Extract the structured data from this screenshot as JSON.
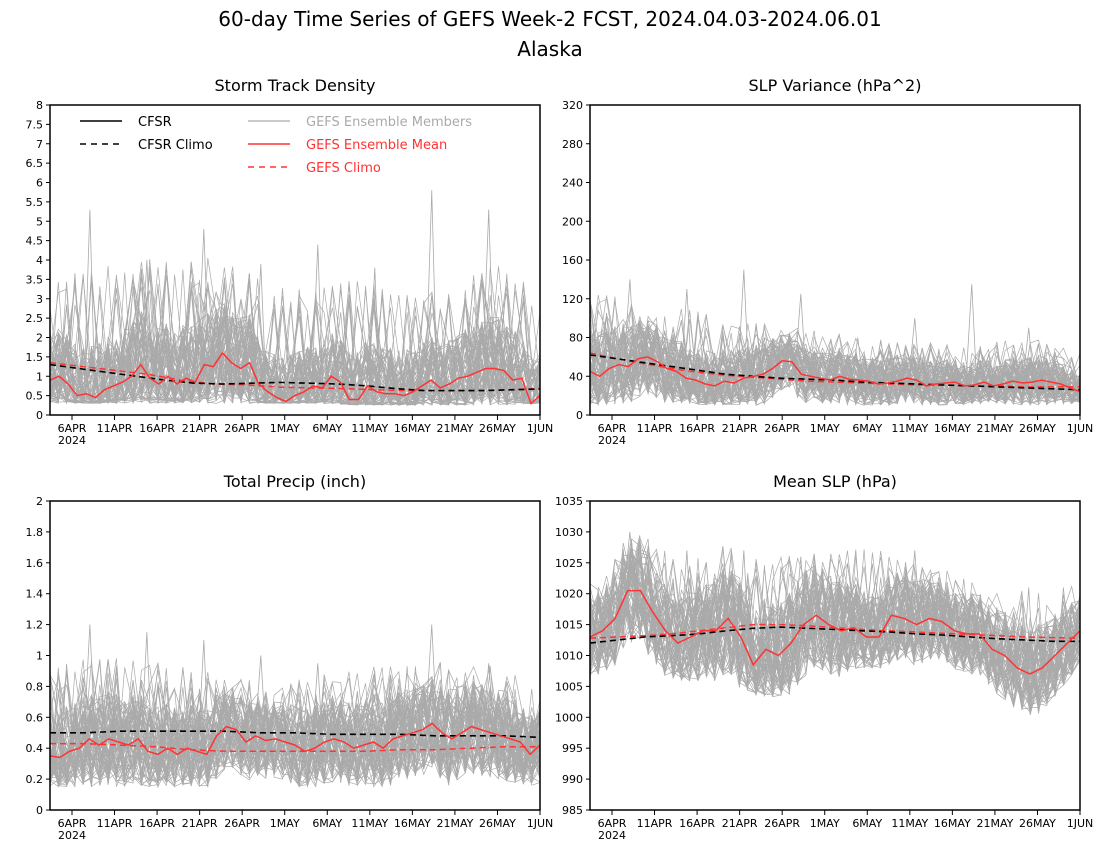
{
  "title": "60-day Time Series of GEFS Week-2 FCST, 2024.04.03-2024.06.01",
  "subtitle": "Alaska",
  "legend": {
    "items": [
      {
        "label": "CFSR",
        "color": "#000000",
        "dash": false
      },
      {
        "label": "CFSR Climo",
        "color": "#000000",
        "dash": true
      },
      {
        "label": "GEFS Ensemble Members",
        "color": "#aaaaaa",
        "dash": false
      },
      {
        "label": "GEFS Ensemble Mean",
        "color": "#ff3333",
        "dash": false
      },
      {
        "label": "GEFS Climo",
        "color": "#ff3333",
        "dash": true
      }
    ]
  },
  "x_ticks": [
    "6APR",
    "11APR",
    "16APR",
    "21APR",
    "26APR",
    "1MAY",
    "6MAY",
    "11MAY",
    "16MAY",
    "21MAY",
    "26MAY",
    "1JUN"
  ],
  "x_year": "2024",
  "colors": {
    "members": "#aaaaaa",
    "mean": "#ff3333",
    "cfsr": "#000000"
  },
  "chart_data": [
    {
      "type": "line",
      "title": "Storm Track Density",
      "ylim": [
        0,
        8
      ],
      "yticks": [
        "0",
        "0.5",
        "1",
        "1.5",
        "2",
        "2.5",
        "3",
        "3.5",
        "4",
        "4.5",
        "5",
        "5.5",
        "6",
        "6.5",
        "7",
        "7.5",
        "8"
      ],
      "ytick_values": [
        0,
        0.5,
        1,
        1.5,
        2,
        2.5,
        3,
        3.5,
        4,
        4.5,
        5,
        5.5,
        6,
        6.5,
        7,
        7.5,
        8
      ],
      "series": [
        {
          "name": "GEFS Ensemble Mean",
          "values": [
            0.9,
            1.0,
            0.8,
            0.5,
            0.55,
            0.45,
            0.65,
            0.75,
            0.85,
            1.0,
            1.3,
            0.95,
            0.8,
            1.0,
            0.8,
            0.95,
            0.85,
            1.3,
            1.25,
            1.6,
            1.35,
            1.2,
            1.35,
            0.8,
            0.6,
            0.45,
            0.35,
            0.5,
            0.6,
            0.75,
            0.7,
            1.0,
            0.85,
            0.4,
            0.4,
            0.75,
            0.6,
            0.55,
            0.55,
            0.5,
            0.6,
            0.75,
            0.9,
            0.7,
            0.8,
            0.95,
            1.0,
            1.1,
            1.2,
            1.2,
            1.15,
            0.9,
            0.95,
            0.3,
            0.5
          ]
        },
        {
          "name": "CFSR Climo",
          "values": [
            1.3,
            1.2,
            1.1,
            1.0,
            0.9,
            0.82,
            0.8,
            0.82,
            0.84,
            0.82,
            0.8,
            0.75,
            0.68,
            0.63,
            0.63,
            0.63,
            0.65,
            0.67
          ]
        },
        {
          "name": "GEFS Climo",
          "values": [
            1.35,
            1.25,
            1.15,
            1.05,
            0.9,
            0.8,
            0.78,
            0.72,
            0.7,
            0.68,
            0.65,
            0.63,
            0.63,
            0.63,
            0.65,
            0.68
          ]
        }
      ],
      "member_envelope": {
        "base": [
          0.3,
          0.3,
          0.3,
          0.3,
          0.3,
          0.3,
          0.3,
          0.25,
          0.25,
          0.25,
          0.25,
          0.3
        ],
        "top": [
          3.0,
          3.2,
          3.4,
          3.5,
          3.4,
          2.8,
          2.8,
          3.0,
          2.8,
          2.8,
          3.3,
          2.8
        ],
        "spikes": [
          5.3,
          4.0,
          4.8,
          3.9,
          4.4,
          3.8,
          5.8,
          5.3
        ]
      }
    },
    {
      "type": "line",
      "title": "SLP Variance (hPa^2)",
      "ylim": [
        0,
        320
      ],
      "yticks": [
        "0",
        "40",
        "80",
        "120",
        "160",
        "200",
        "240",
        "280",
        "320"
      ],
      "ytick_values": [
        0,
        40,
        80,
        120,
        160,
        200,
        240,
        280,
        320
      ],
      "series": [
        {
          "name": "GEFS Ensemble Mean",
          "values": [
            45,
            40,
            48,
            52,
            50,
            58,
            60,
            55,
            48,
            45,
            38,
            36,
            32,
            30,
            35,
            33,
            38,
            40,
            42,
            48,
            56,
            55,
            42,
            40,
            38,
            36,
            40,
            37,
            36,
            35,
            32,
            33,
            35,
            38,
            36,
            30,
            32,
            33,
            34,
            30,
            31,
            34,
            30,
            32,
            35,
            33,
            34,
            36,
            34,
            32,
            28,
            24
          ]
        },
        {
          "name": "CFSR Climo",
          "values": [
            62,
            58,
            54,
            50,
            46,
            42,
            40,
            38,
            37,
            36,
            34,
            33,
            32,
            31,
            30,
            29,
            28,
            27,
            26
          ]
        },
        {
          "name": "GEFS Climo",
          "values": [
            64,
            58,
            53,
            48,
            44,
            41,
            39,
            37,
            35,
            34,
            33,
            32,
            31,
            31,
            30,
            30,
            29,
            29,
            29
          ]
        }
      ],
      "member_envelope": {
        "base": [
          10,
          12,
          12,
          10,
          10,
          12,
          10,
          10,
          10,
          12,
          10,
          12
        ],
        "top": [
          110,
          100,
          95,
          85,
          80,
          75,
          70,
          65,
          65,
          65,
          70,
          55
        ],
        "spikes": [
          140,
          130,
          150,
          125,
          80,
          100,
          135,
          90
        ]
      }
    },
    {
      "type": "line",
      "title": "Total Precip (inch)",
      "ylim": [
        0,
        2
      ],
      "yticks": [
        "0",
        "0.2",
        "0.4",
        "0.6",
        "0.8",
        "1",
        "1.2",
        "1.4",
        "1.6",
        "1.8",
        "2"
      ],
      "ytick_values": [
        0,
        0.2,
        0.4,
        0.6,
        0.8,
        1,
        1.2,
        1.4,
        1.6,
        1.8,
        2
      ],
      "series": [
        {
          "name": "GEFS Ensemble Mean",
          "values": [
            0.35,
            0.34,
            0.38,
            0.4,
            0.46,
            0.42,
            0.46,
            0.44,
            0.42,
            0.46,
            0.38,
            0.36,
            0.4,
            0.36,
            0.4,
            0.38,
            0.36,
            0.48,
            0.54,
            0.52,
            0.44,
            0.48,
            0.45,
            0.46,
            0.44,
            0.42,
            0.38,
            0.4,
            0.44,
            0.46,
            0.44,
            0.4,
            0.42,
            0.44,
            0.4,
            0.46,
            0.48,
            0.5,
            0.52,
            0.56,
            0.5,
            0.46,
            0.5,
            0.54,
            0.52,
            0.5,
            0.48,
            0.46,
            0.44,
            0.36,
            0.42
          ]
        },
        {
          "name": "CFSR Climo",
          "values": [
            0.5,
            0.5,
            0.51,
            0.51,
            0.51,
            0.51,
            0.5,
            0.5,
            0.49,
            0.49,
            0.49,
            0.48,
            0.48,
            0.48,
            0.47
          ]
        },
        {
          "name": "GEFS Climo",
          "values": [
            0.43,
            0.43,
            0.42,
            0.41,
            0.39,
            0.38,
            0.38,
            0.38,
            0.38,
            0.38,
            0.39,
            0.39,
            0.4,
            0.41,
            0.41
          ]
        }
      ],
      "member_envelope": {
        "base": [
          0.15,
          0.15,
          0.15,
          0.15,
          0.15,
          0.15,
          0.15,
          0.15,
          0.15,
          0.15,
          0.15,
          0.15
        ],
        "top": [
          0.8,
          0.85,
          0.85,
          0.8,
          0.75,
          0.7,
          0.75,
          0.8,
          0.8,
          0.85,
          0.8,
          0.7
        ],
        "spikes": [
          1.2,
          1.15,
          1.1,
          1.0,
          0.95,
          0.9,
          1.2,
          0.95
        ]
      }
    },
    {
      "type": "line",
      "title": "Mean SLP (hPa)",
      "ylim": [
        985,
        1035
      ],
      "yticks": [
        "985",
        "990",
        "995",
        "1000",
        "1005",
        "1010",
        "1015",
        "1020",
        "1025",
        "1030",
        "1035"
      ],
      "ytick_values": [
        985,
        990,
        995,
        1000,
        1005,
        1010,
        1015,
        1020,
        1025,
        1030,
        1035
      ],
      "series": [
        {
          "name": "GEFS Ensemble Mean",
          "values": [
            1013,
            1014,
            1016,
            1020.5,
            1020.5,
            1017,
            1014,
            1012,
            1013,
            1014,
            1014,
            1016,
            1013,
            1008.5,
            1011,
            1010,
            1012,
            1015,
            1016.5,
            1015,
            1014,
            1014.5,
            1013,
            1013,
            1016.5,
            1016,
            1015,
            1016,
            1015.5,
            1014,
            1013.5,
            1013.5,
            1011,
            1010,
            1008,
            1007,
            1008,
            1010,
            1012,
            1014
          ]
        },
        {
          "name": "CFSR Climo",
          "values": [
            1012,
            1012.5,
            1013,
            1013.2,
            1013.5,
            1014,
            1014.4,
            1014.6,
            1014.4,
            1014.2,
            1014,
            1013.8,
            1013.5,
            1013.3,
            1013,
            1012.7,
            1012.5,
            1012.3,
            1012.3
          ]
        },
        {
          "name": "GEFS Climo",
          "values": [
            1012.8,
            1013,
            1013.2,
            1013.5,
            1014,
            1014.5,
            1015,
            1015,
            1014.8,
            1014.5,
            1014.2,
            1014,
            1013.8,
            1013.6,
            1013.4,
            1013.2,
            1013,
            1012.9,
            1012.8
          ]
        }
      ],
      "member_envelope": {
        "base": [
          1006,
          1008,
          1006,
          1005,
          1003,
          1004,
          1008,
          1008,
          1007,
          1003,
          1000,
          1007
        ],
        "top": [
          1020,
          1027,
          1022,
          1024,
          1022,
          1023,
          1024,
          1024,
          1021,
          1018,
          1017,
          1019
        ],
        "spikes": [
          1030,
          1027,
          1027,
          1026,
          1022,
          1027,
          1020,
          1021
        ]
      }
    }
  ]
}
